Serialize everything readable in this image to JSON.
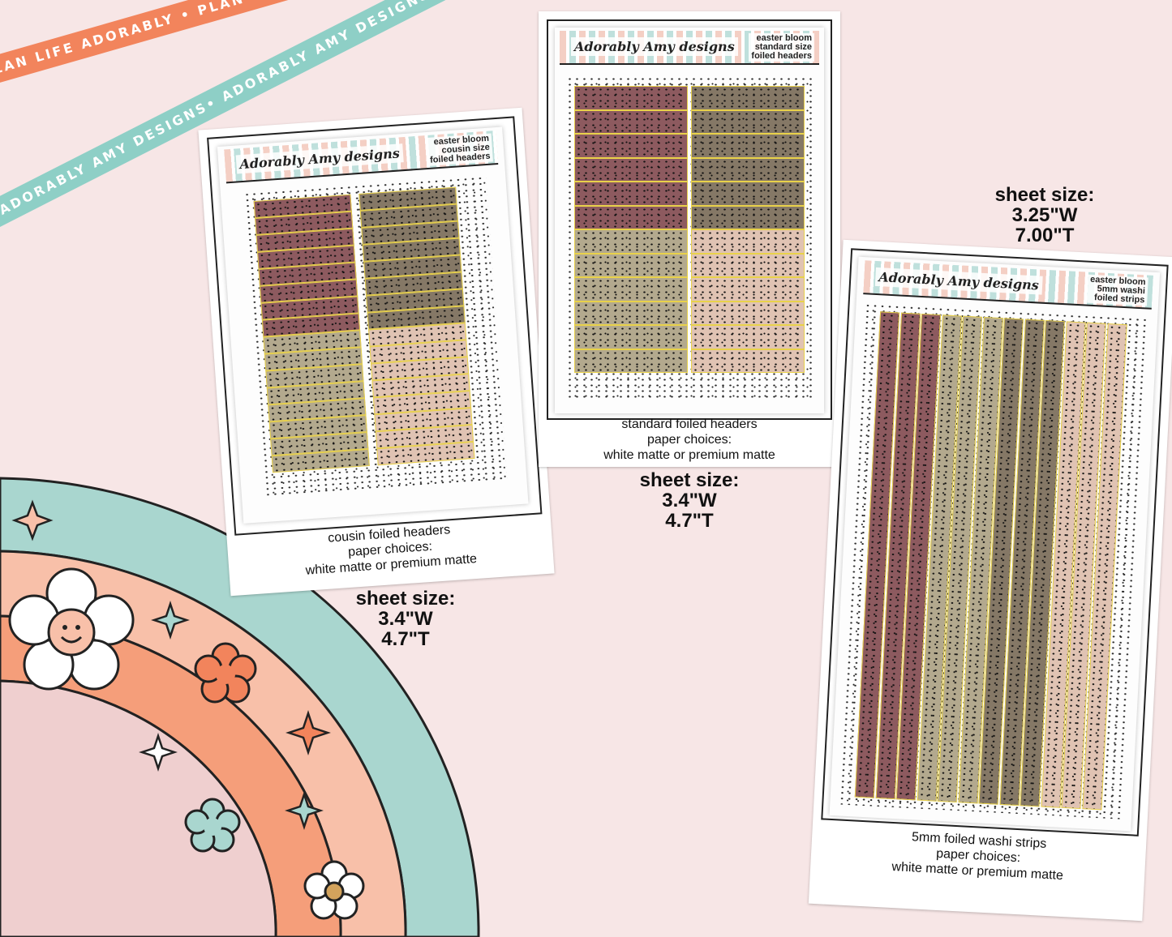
{
  "ribbons": {
    "top": "PLAN LIFE ADORABLY • PLAN LIFE ADORABLY • PLAN LIFE ADORABLY • PLAN LIFE ADORABLY •",
    "middle": "ADORABLY AMY DESIGNS• ADORABLY AMY DESIGNS• ADORABLY AMY DESIGNS• ADORABLY AMY DESIGNS•"
  },
  "products": [
    {
      "logo": "Adorably Amy designs",
      "header_lines": [
        "easter bloom",
        "cousin size",
        "foiled headers"
      ],
      "caption": [
        "cousin foiled headers",
        "paper choices:",
        "white matte or premium matte"
      ],
      "size": [
        "sheet size:",
        "3.4\"W",
        "4.7\"T"
      ]
    },
    {
      "logo": "Adorably Amy designs",
      "header_lines": [
        "easter bloom",
        "standard size",
        "foiled headers"
      ],
      "caption": [
        "standard foiled headers",
        "paper choices:",
        "white matte or premium matte"
      ],
      "size": [
        "sheet size:",
        "3.4\"W",
        "4.7\"T"
      ]
    },
    {
      "logo": "Adorably Amy designs",
      "header_lines": [
        "easter bloom",
        "5mm washi",
        "foiled strips"
      ],
      "caption": [
        "5mm foiled washi strips",
        "paper choices:",
        "white matte or premium matte"
      ],
      "size": [
        "sheet size:",
        "3.25\"W",
        "7.00\"T"
      ]
    }
  ],
  "colors": {
    "background": "#f7e6e6",
    "ribbon_orange": "#f2845c",
    "ribbon_teal": "#8ecfc6",
    "mauve": "#8d5a5f",
    "taupe": "#857866",
    "olive": "#b3a98e",
    "blush": "#e0c3b3",
    "foil": "#e9d24a",
    "rainbow": [
      "#a9d6cf",
      "#f8c0a9",
      "#f59e7a",
      "#efcfcf"
    ]
  }
}
